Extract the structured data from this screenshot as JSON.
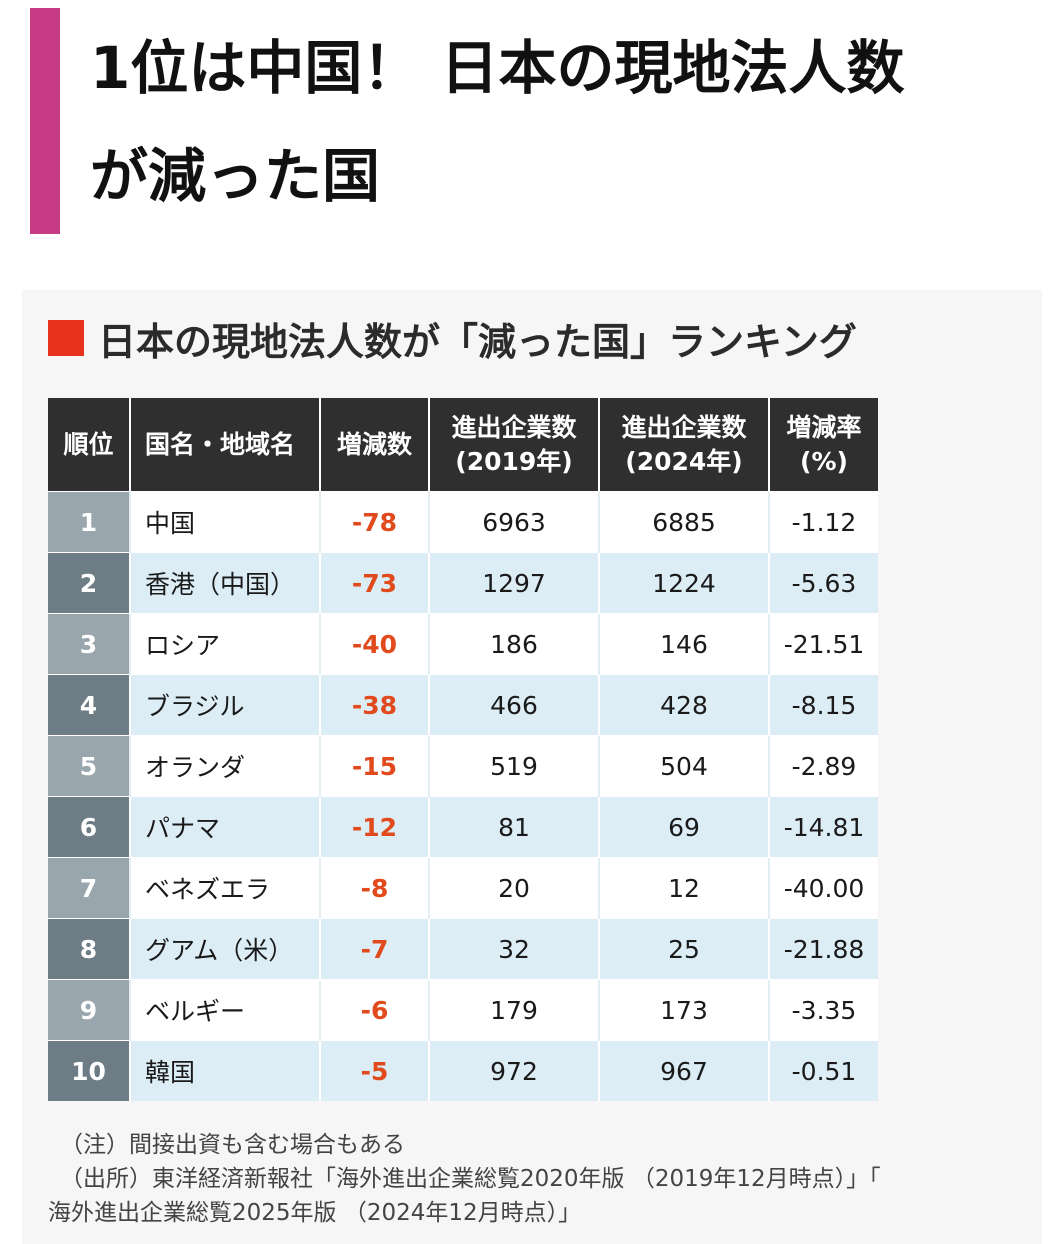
{
  "headline": {
    "line1": "1位は中国！ 日本の現地法人数",
    "line2": "が減った国",
    "accent_color": "#c63a86"
  },
  "infographic": {
    "title": "日本の現地法人数が「減った国」ランキング",
    "title_marker_color": "#e8321c",
    "columns": [
      "順位",
      "国名・地域名",
      "増減数",
      "進出企業数\n(2019年)",
      "進出企業数\n(2024年)",
      "増減率\n(%)"
    ],
    "rows": [
      {
        "rank": "1",
        "country": "中国",
        "change": "-78",
        "y2019": "6963",
        "y2024": "6885",
        "rate": "-1.12"
      },
      {
        "rank": "2",
        "country": "香港（中国）",
        "change": "-73",
        "y2019": "1297",
        "y2024": "1224",
        "rate": "-5.63"
      },
      {
        "rank": "3",
        "country": "ロシア",
        "change": "-40",
        "y2019": "186",
        "y2024": "146",
        "rate": "-21.51"
      },
      {
        "rank": "4",
        "country": "ブラジル",
        "change": "-38",
        "y2019": "466",
        "y2024": "428",
        "rate": "-8.15"
      },
      {
        "rank": "5",
        "country": "オランダ",
        "change": "-15",
        "y2019": "519",
        "y2024": "504",
        "rate": "-2.89"
      },
      {
        "rank": "6",
        "country": "パナマ",
        "change": "-12",
        "y2019": "81",
        "y2024": "69",
        "rate": "-14.81"
      },
      {
        "rank": "7",
        "country": "ベネズエラ",
        "change": "-8",
        "y2019": "20",
        "y2024": "12",
        "rate": "-40.00"
      },
      {
        "rank": "8",
        "country": "グアム（米）",
        "change": "-7",
        "y2019": "32",
        "y2024": "25",
        "rate": "-21.88"
      },
      {
        "rank": "9",
        "country": "ベルギー",
        "change": "-6",
        "y2019": "179",
        "y2024": "173",
        "rate": "-3.35"
      },
      {
        "rank": "10",
        "country": "韓国",
        "change": "-5",
        "y2019": "972",
        "y2024": "967",
        "rate": "-0.51"
      }
    ],
    "change_color": "#e04a1c",
    "notes": {
      "note": "（注）間接出資も含む場合もある",
      "source_line1": "（出所）東洋経済新報社「海外進出企業総覧2020年版 （2019年12月時点）」「",
      "source_line2": "海外進出企業総覧2025年版 （2024年12月時点）」"
    }
  }
}
